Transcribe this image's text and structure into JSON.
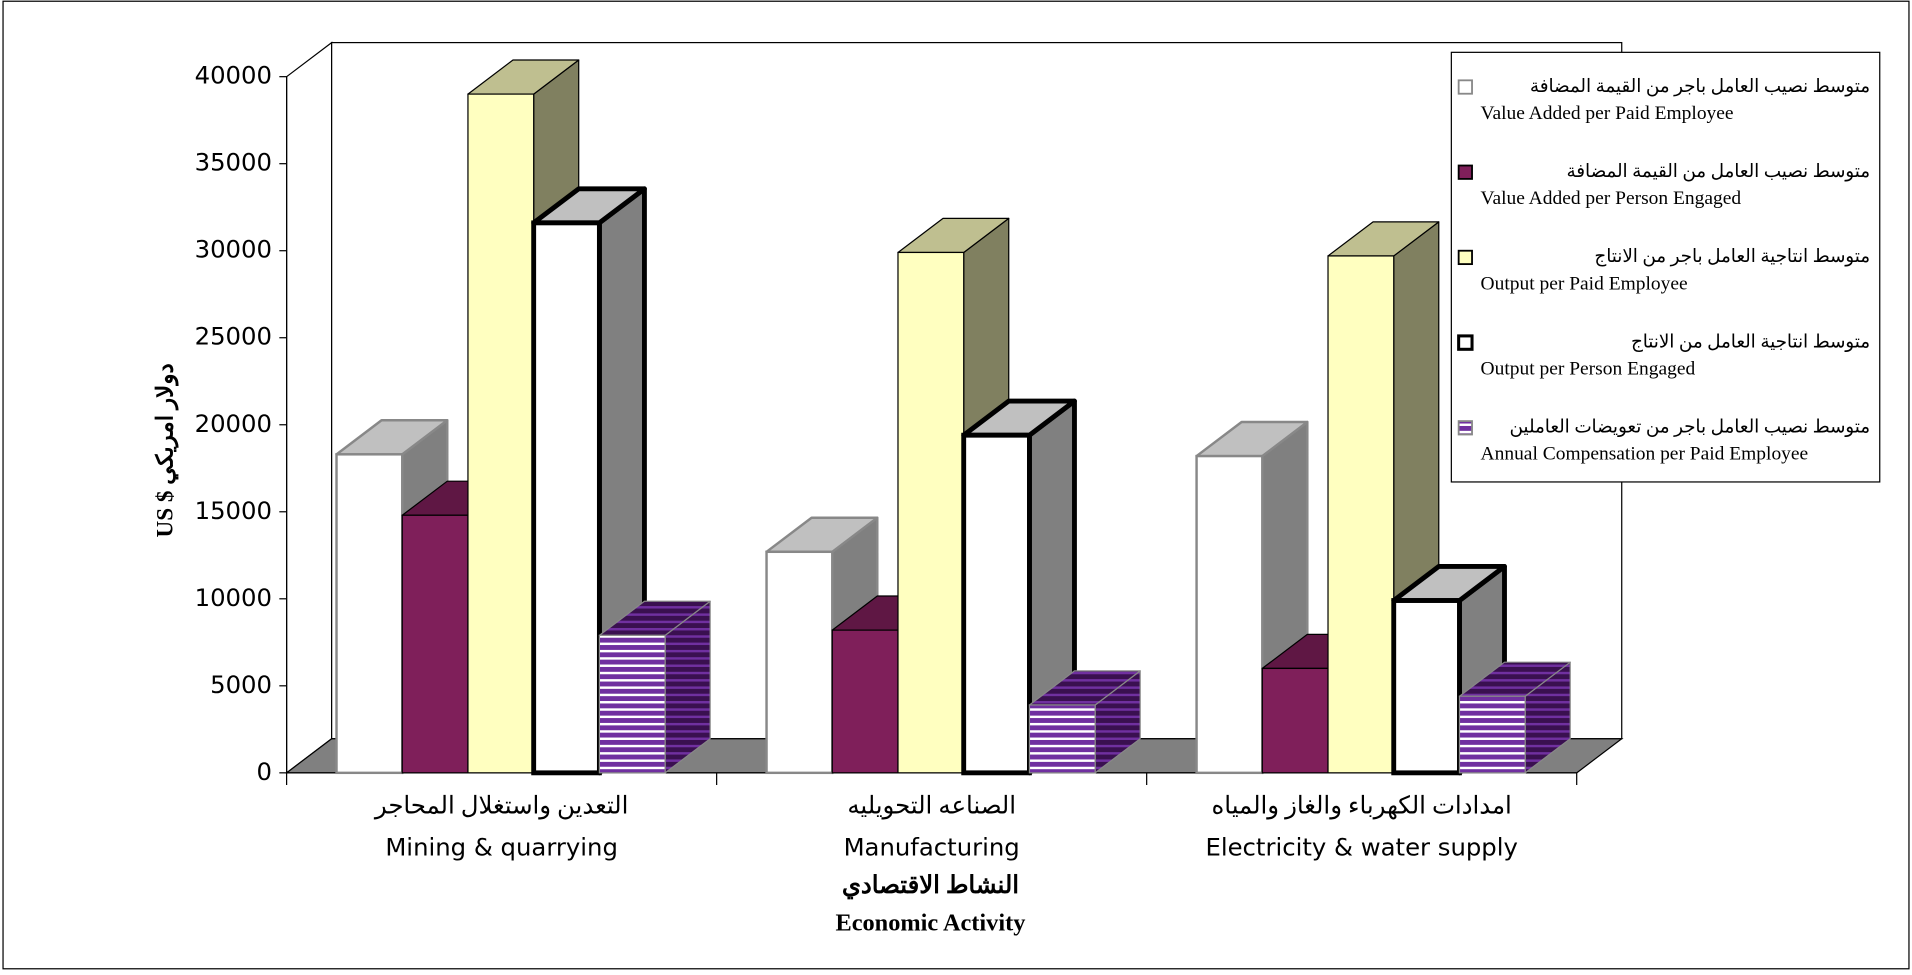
{
  "chart_data": {
    "type": "bar3d",
    "categories": [
      "Mining & quarrying",
      "Manufacturing",
      "Electricity & water supply"
    ],
    "categories_ar": [
      "التعدين واستغلال المحاجر",
      "الصناعه التحويليه",
      "امدادات الكهرباء والغاز والمياه"
    ],
    "y_label": "US $ دولار امريكي",
    "x_label_ar": "النشاط الاقتصادي",
    "x_label": "Economic Activity",
    "ylim": [
      0,
      40000
    ],
    "yticks": [
      0,
      5000,
      10000,
      15000,
      20000,
      25000,
      30000,
      35000,
      40000
    ],
    "legend": "top-right",
    "series": [
      {
        "name": "Value Added per Paid Employee",
        "name_ar": "متوسط نصيب العامل باجر من القيمة المضافة",
        "color": "#ffffff",
        "values": [
          18300,
          12700,
          18200
        ]
      },
      {
        "name": "Value Added per Person Engaged",
        "name_ar": "متوسط نصيب العامل من القيمة المضافة",
        "color": "#7f1f5a",
        "values": [
          14800,
          8200,
          6000
        ]
      },
      {
        "name": "Output per Paid Employee",
        "name_ar": "متوسط انتاجية العامل باجر من الانتاج",
        "color": "#ffffc0",
        "values": [
          39000,
          29900,
          29700
        ]
      },
      {
        "name": "Output per Person Engaged",
        "name_ar": "متوسط انتاجية العامل من الانتاج",
        "color": "#ffffff",
        "values": [
          31600,
          19400,
          9900
        ]
      },
      {
        "name": "Annual Compensation per Paid Employee",
        "name_ar": "متوسط نصيب العامل باجر من تعويضات العاملين",
        "color": "#7030a0",
        "pattern": "stripes",
        "values": [
          7900,
          3900,
          4400
        ]
      }
    ]
  }
}
